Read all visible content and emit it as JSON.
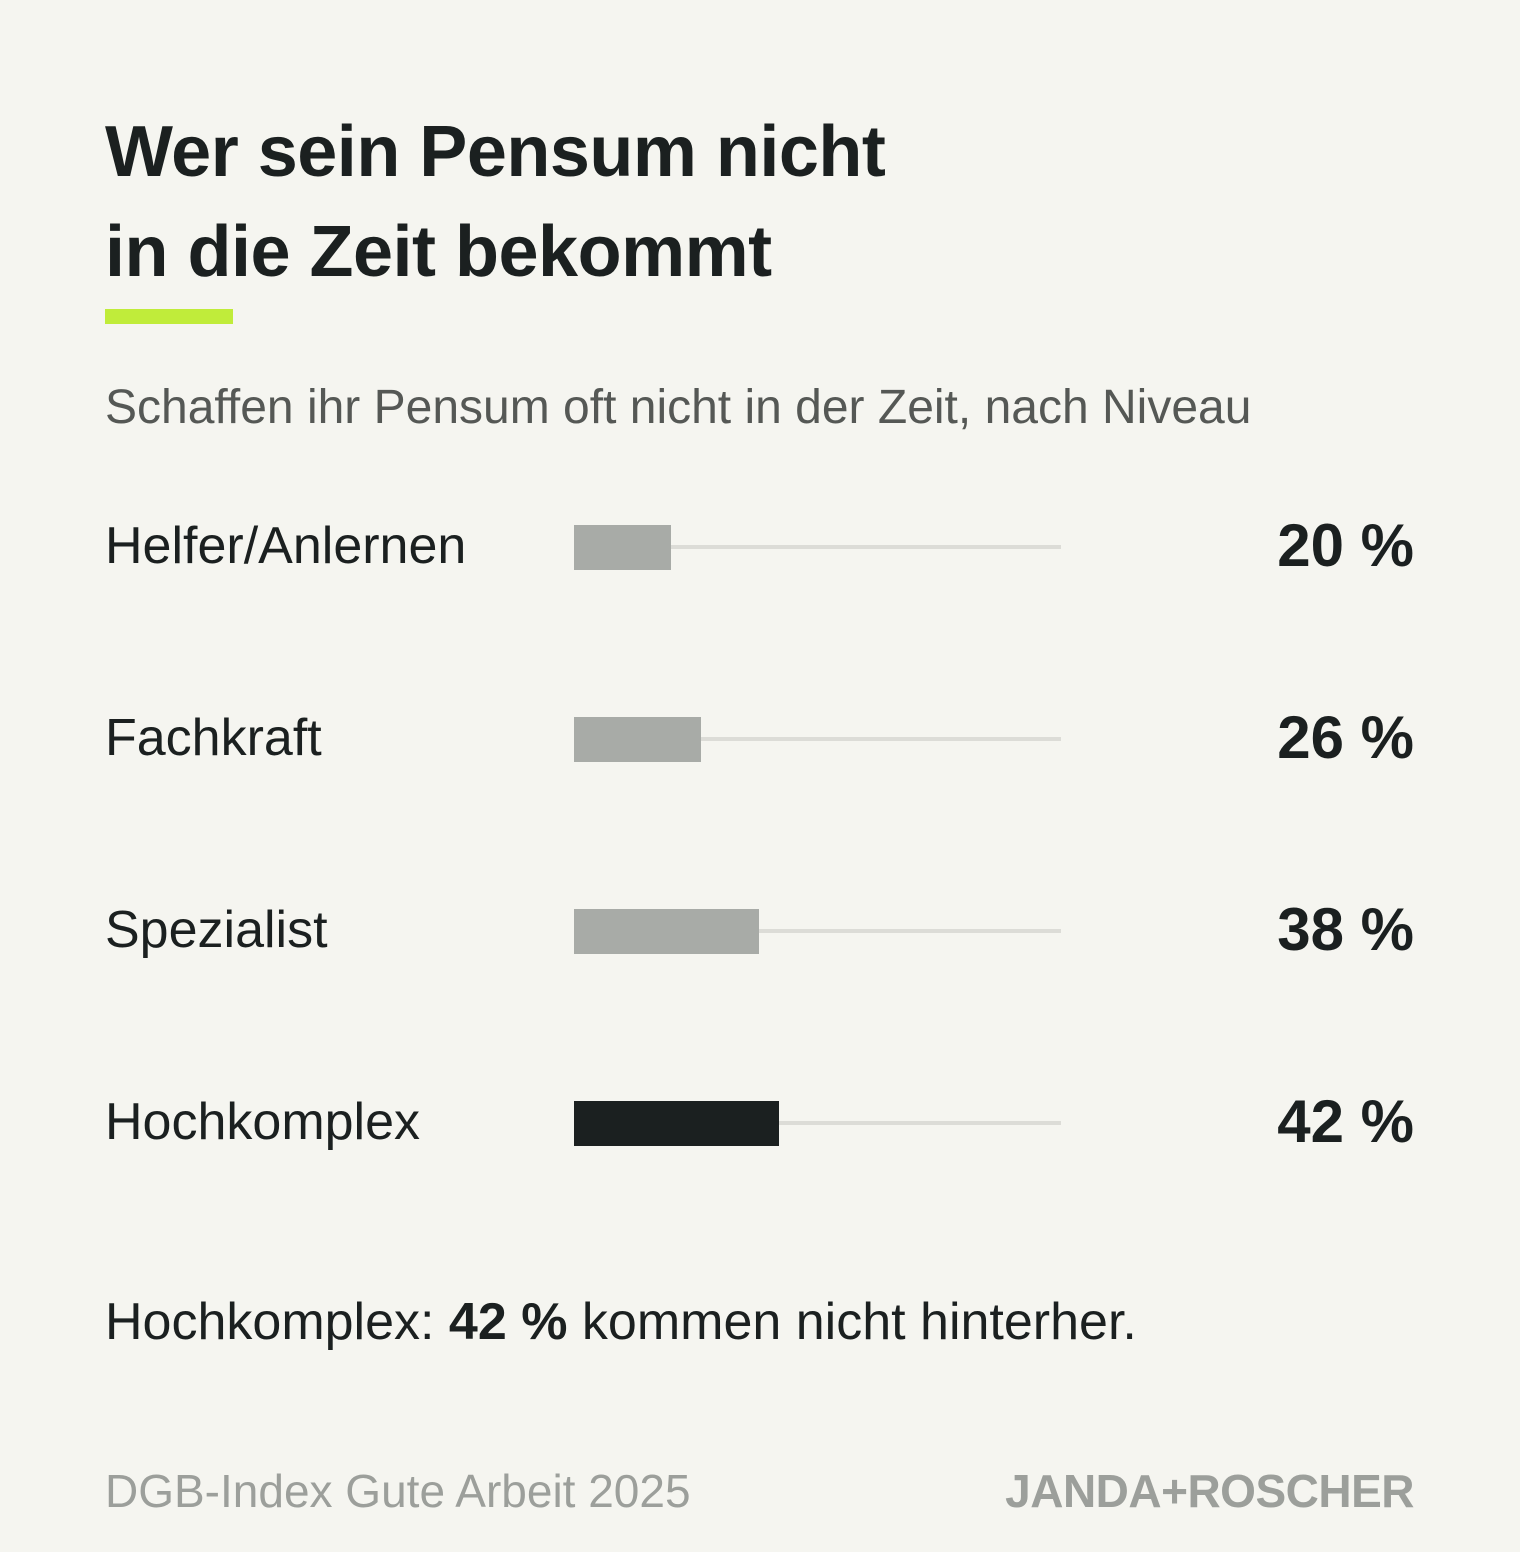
{
  "title": {
    "line1": "Wer sein Pensum nicht",
    "line2": "in die Zeit bekommt"
  },
  "subtitle": "Schaffen ihr Pensum oft nicht in der Zeit, nach Niveau",
  "colors": {
    "accent": "#c0ec3a",
    "bar_default": "#a8aba7",
    "bar_highlight": "#1b2020",
    "track": "#dcdcd7",
    "background": "#f5f5f0"
  },
  "chart_data": {
    "type": "bar",
    "orientation": "horizontal",
    "title": "Wer sein Pensum nicht in die Zeit bekommt",
    "subtitle": "Schaffen ihr Pensum oft nicht in der Zeit, nach Niveau",
    "categories": [
      "Helfer/Anlernen",
      "Fachkraft",
      "Spezialist",
      "Hochkomplex"
    ],
    "values": [
      20,
      26,
      38,
      42
    ],
    "value_labels": [
      "20 %",
      "26 %",
      "38 %",
      "42 %"
    ],
    "highlight_index": 3,
    "unit": "%",
    "xlim": [
      0,
      100
    ],
    "grid": false,
    "legend": "none"
  },
  "takeaway": {
    "prefix": "Hochkomplex: ",
    "highlight": "42 %",
    "suffix": " kommen nicht hinterher."
  },
  "source": "DGB-Index Gute Arbeit 2025",
  "brand": "JANDA+ROSCHER"
}
